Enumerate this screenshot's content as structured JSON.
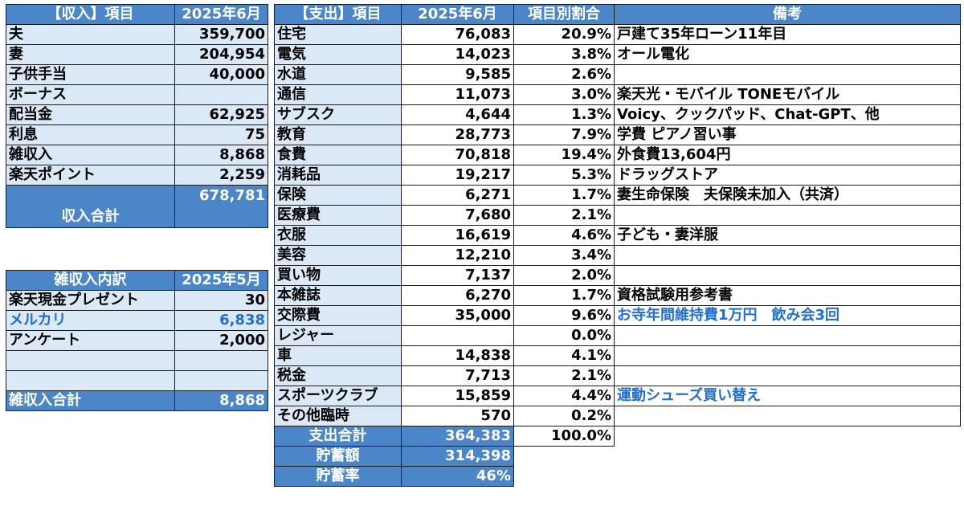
{
  "income": {
    "headers": [
      "【収入】項目",
      "2025年6月"
    ],
    "rows": [
      {
        "label": "夫",
        "value": "359,700"
      },
      {
        "label": "妻",
        "value": "204,954"
      },
      {
        "label": "子供手当",
        "value": "40,000"
      },
      {
        "label": "ボーナス",
        "value": ""
      },
      {
        "label": "配当金",
        "value": "62,925"
      },
      {
        "label": "利息",
        "value": "75"
      },
      {
        "label": "雑収入",
        "value": "8,868"
      },
      {
        "label": "楽天ポイント",
        "value": "2,259"
      }
    ],
    "total_label": "収入合計",
    "total_value": "678,781"
  },
  "misc": {
    "headers": [
      "雑収入内訳",
      "2025年5月"
    ],
    "rows": [
      {
        "label": "楽天現金プレゼント",
        "value": "30",
        "color": ""
      },
      {
        "label": "メルカリ",
        "value": "6,838",
        "color": "#1f6fd1"
      },
      {
        "label": "アンケート",
        "value": "2,000",
        "color": ""
      },
      {
        "label": "",
        "value": "",
        "color": ""
      },
      {
        "label": "",
        "value": "",
        "color": ""
      }
    ],
    "total_label": "雑収入合計",
    "total_value": "8,868"
  },
  "expense": {
    "headers": [
      "【支出】項目",
      "2025年6月",
      "項目別割合",
      "備考"
    ],
    "rows": [
      {
        "label": "住宅",
        "value": "76,083",
        "pct": "20.9%",
        "note": "戸建て35年ローン11年目",
        "note_color": ""
      },
      {
        "label": "電気",
        "value": "14,023",
        "pct": "3.8%",
        "note": "オール電化",
        "note_color": ""
      },
      {
        "label": "水道",
        "value": "9,585",
        "pct": "2.6%",
        "note": "",
        "note_color": ""
      },
      {
        "label": "通信",
        "value": "11,073",
        "pct": "3.0%",
        "note": "楽天光・モバイル TONEモバイル",
        "note_color": ""
      },
      {
        "label": "サブスク",
        "value": "4,644",
        "pct": "1.3%",
        "note": "Voicy、クックパッド、Chat-GPT、他",
        "note_color": ""
      },
      {
        "label": "教育",
        "value": "28,773",
        "pct": "7.9%",
        "note": "学費 ピアノ習い事",
        "note_color": ""
      },
      {
        "label": "食費",
        "value": "70,818",
        "pct": "19.4%",
        "note": "外食費13,604円",
        "note_color": ""
      },
      {
        "label": "消耗品",
        "value": "19,217",
        "pct": "5.3%",
        "note": "ドラッグストア",
        "note_color": ""
      },
      {
        "label": "保険",
        "value": "6,271",
        "pct": "1.7%",
        "note": "妻生命保険　夫保険未加入（共済）",
        "note_color": ""
      },
      {
        "label": "医療費",
        "value": "7,680",
        "pct": "2.1%",
        "note": "",
        "note_color": ""
      },
      {
        "label": "衣服",
        "value": "16,619",
        "pct": "4.6%",
        "note": "子ども・妻洋服",
        "note_color": ""
      },
      {
        "label": "美容",
        "value": "12,210",
        "pct": "3.4%",
        "note": "",
        "note_color": ""
      },
      {
        "label": "買い物",
        "value": "7,137",
        "pct": "2.0%",
        "note": "",
        "note_color": ""
      },
      {
        "label": "本雑誌",
        "value": "6,270",
        "pct": "1.7%",
        "note": "資格試験用参考書",
        "note_color": ""
      },
      {
        "label": "交際費",
        "value": "35,000",
        "pct": "9.6%",
        "note": "お寺年間維持費1万円　飲み会3回",
        "note_color": "#1f6fd1"
      },
      {
        "label": "レジャー",
        "value": "",
        "pct": "0.0%",
        "note": "",
        "note_color": ""
      },
      {
        "label": "車",
        "value": "14,838",
        "pct": "4.1%",
        "note": "",
        "note_color": ""
      },
      {
        "label": "税金",
        "value": "7,713",
        "pct": "2.1%",
        "note": "",
        "note_color": ""
      },
      {
        "label": "スポーツクラブ",
        "value": "15,859",
        "pct": "4.4%",
        "note": "運動シューズ買い替え",
        "note_color": "#1f6fd1"
      },
      {
        "label": "その他臨時",
        "value": "570",
        "pct": "0.2%",
        "note": "",
        "note_color": ""
      }
    ],
    "total_label": "支出合計",
    "total_value": "364,383",
    "total_pct": "100.0%",
    "savings_label": "貯蓄額",
    "savings_value": "314,398",
    "rate_label": "貯蓄率",
    "rate_value": "46%"
  }
}
